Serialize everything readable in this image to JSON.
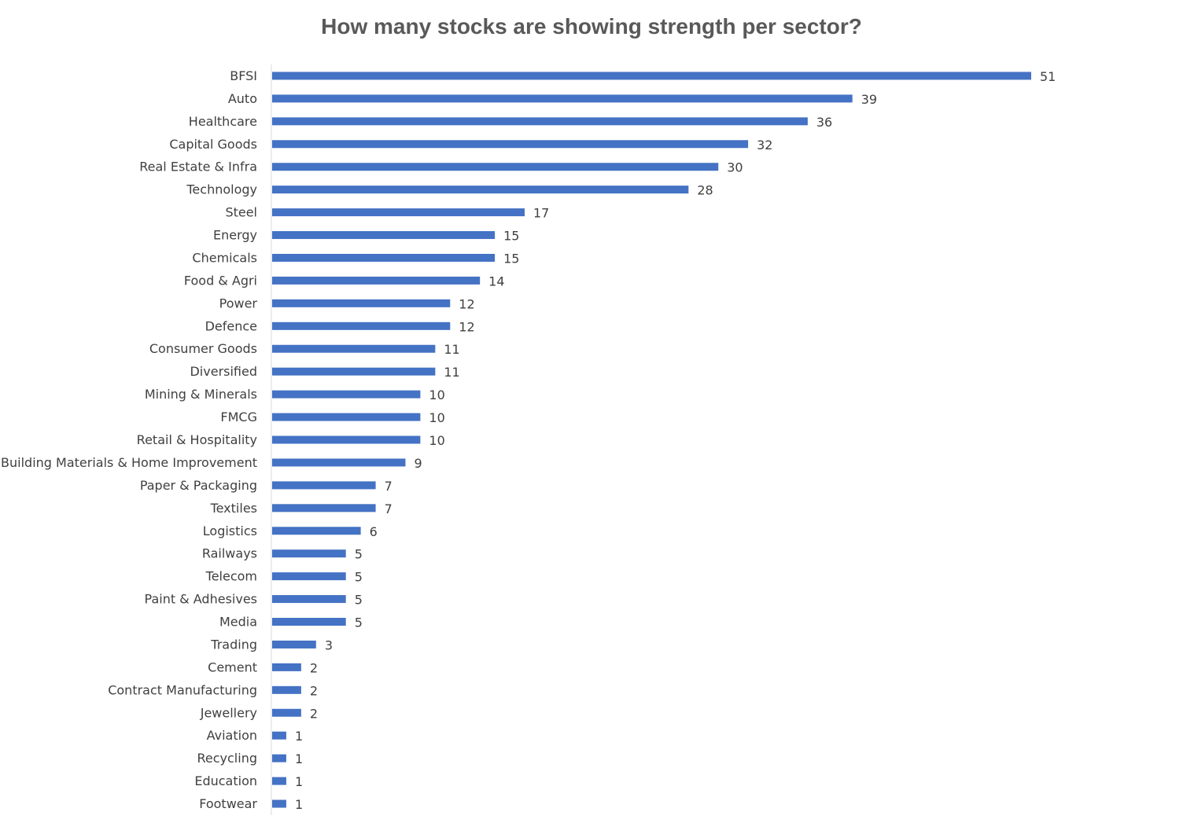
{
  "chart_data": {
    "type": "bar",
    "orientation": "horizontal",
    "title": "How many stocks are showing strength per sector?",
    "xlabel": "",
    "ylabel": "",
    "grid": false,
    "bar_color": "#4472C4",
    "text_color": "#404040",
    "title_color": "#595959",
    "xlim": [
      0,
      51
    ],
    "categories": [
      "BFSI",
      "Auto",
      "Healthcare",
      "Capital Goods",
      "Real Estate & Infra",
      "Technology",
      "Steel",
      "Energy",
      "Chemicals",
      "Food & Agri",
      "Power",
      "Defence",
      "Consumer Goods",
      "Diversified",
      "Mining & Minerals",
      "FMCG",
      "Retail & Hospitality",
      "Building Materials & Home Improvement",
      "Paper & Packaging",
      "Textiles",
      "Logistics",
      "Railways",
      "Telecom",
      "Paint & Adhesives",
      "Media",
      "Trading",
      "Cement",
      "Contract Manufacturing",
      "Jewellery",
      "Aviation",
      "Recycling",
      "Education",
      "Footwear"
    ],
    "values": [
      51,
      39,
      36,
      32,
      30,
      28,
      17,
      15,
      15,
      14,
      12,
      12,
      11,
      11,
      10,
      10,
      10,
      9,
      7,
      7,
      6,
      5,
      5,
      5,
      5,
      3,
      2,
      2,
      2,
      1,
      1,
      1,
      1
    ]
  }
}
